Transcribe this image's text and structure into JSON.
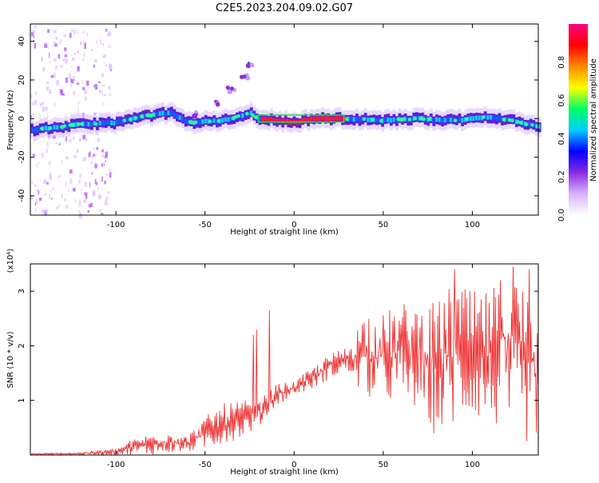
{
  "chart_data": [
    {
      "type": "heatmap",
      "title": "C2E5.2023.204.09.02.G07",
      "xlabel": "Height of straight line (km)",
      "ylabel": "Frequency (Hz)",
      "xlim": [
        -148,
        137
      ],
      "ylim": [
        -50,
        49
      ],
      "x_ticks": [
        -100,
        -50,
        0,
        50,
        100
      ],
      "y_ticks": [
        -40,
        -20,
        0,
        20,
        40
      ],
      "colorbar": {
        "label": "Normalized spectral amplitude",
        "range": [
          0,
          1
        ],
        "ticks": [
          0.0,
          0.2,
          0.4,
          0.6,
          0.8
        ],
        "tick_labels": [
          "0.0",
          "0.2",
          "0.4",
          "0.6",
          "0.8"
        ],
        "colormap": [
          "#ffffff",
          "#d9b3ff",
          "#8a2be2",
          "#0000ff",
          "#00ccff",
          "#00ff66",
          "#ffff00",
          "#ff8800",
          "#ff0000",
          "#ff007f"
        ]
      },
      "main_band": {
        "description_points": [
          {
            "x": -148,
            "freq": -6
          },
          {
            "x": -120,
            "freq": -3
          },
          {
            "x": -100,
            "freq": -2
          },
          {
            "x": -80,
            "freq": 2
          },
          {
            "x": -70,
            "freq": 3
          },
          {
            "x": -60,
            "freq": -2
          },
          {
            "x": -40,
            "freq": -1
          },
          {
            "x": -25,
            "freq": 3
          },
          {
            "x": -20,
            "freq": 0
          },
          {
            "x": 0,
            "freq": -2
          },
          {
            "x": 10,
            "freq": 0
          },
          {
            "x": 30,
            "freq": 0
          },
          {
            "x": 50,
            "freq": -1
          },
          {
            "x": 70,
            "freq": 0
          },
          {
            "x": 90,
            "freq": -1
          },
          {
            "x": 110,
            "freq": 1
          },
          {
            "x": 137,
            "freq": -4
          }
        ],
        "peak_range_x": [
          -20,
          28
        ],
        "peak_freq": 0
      },
      "secondary_trace": [
        {
          "x": -55,
          "freq": 2
        },
        {
          "x": -45,
          "freq": 8
        },
        {
          "x": -35,
          "freq": 15
        },
        {
          "x": -28,
          "freq": 22
        },
        {
          "x": -24,
          "freq": 28
        }
      ]
    },
    {
      "type": "line",
      "xlabel": "Height of straight line (km)",
      "ylabel": "SNR (10 * v/v)",
      "y_multiplier": "(x10⁴)",
      "xlim": [
        -148,
        137
      ],
      "ylim": [
        0,
        3.5
      ],
      "x_ticks": [
        -100,
        -50,
        0,
        50,
        100
      ],
      "y_ticks": [
        1,
        2,
        3
      ],
      "color": "#ee3333",
      "envelope": [
        {
          "x": -148,
          "low": 0.0,
          "high": 0.03
        },
        {
          "x": -120,
          "low": 0.0,
          "high": 0.05
        },
        {
          "x": -100,
          "low": 0.0,
          "high": 0.12
        },
        {
          "x": -90,
          "low": 0.0,
          "high": 0.3
        },
        {
          "x": -80,
          "low": 0.0,
          "high": 0.4
        },
        {
          "x": -70,
          "low": 0.03,
          "high": 0.45
        },
        {
          "x": -60,
          "low": 0.05,
          "high": 0.35
        },
        {
          "x": -50,
          "low": 0.1,
          "high": 0.7
        },
        {
          "x": -40,
          "low": 0.2,
          "high": 0.95
        },
        {
          "x": -30,
          "low": 0.3,
          "high": 1.0
        },
        {
          "x": -20,
          "low": 0.5,
          "high": 1.0
        },
        {
          "x": -10,
          "low": 0.9,
          "high": 1.3
        },
        {
          "x": 0,
          "low": 1.1,
          "high": 1.35
        },
        {
          "x": 10,
          "low": 1.2,
          "high": 1.6
        },
        {
          "x": 20,
          "low": 1.4,
          "high": 1.85
        },
        {
          "x": 30,
          "low": 1.5,
          "high": 2.0
        },
        {
          "x": 40,
          "low": 1.0,
          "high": 2.7
        },
        {
          "x": 50,
          "low": 1.0,
          "high": 2.6
        },
        {
          "x": 60,
          "low": 0.9,
          "high": 2.8
        },
        {
          "x": 70,
          "low": 0.8,
          "high": 2.8
        },
        {
          "x": 80,
          "low": 0.3,
          "high": 2.8
        },
        {
          "x": 90,
          "low": 0.5,
          "high": 3.2
        },
        {
          "x": 100,
          "low": 0.7,
          "high": 3.0
        },
        {
          "x": 110,
          "low": 0.5,
          "high": 3.0
        },
        {
          "x": 120,
          "low": 0.4,
          "high": 3.5
        },
        {
          "x": 130,
          "low": 0.2,
          "high": 3.1
        },
        {
          "x": 137,
          "low": 0.3,
          "high": 2.5
        }
      ],
      "spikes": [
        {
          "x": -23,
          "y": 2.2
        },
        {
          "x": -21,
          "y": 2.3
        },
        {
          "x": -14,
          "y": 2.65
        },
        {
          "x": 90,
          "y": 3.4
        },
        {
          "x": 123,
          "y": 3.45
        },
        {
          "x": 132,
          "y": 3.4
        }
      ]
    }
  ]
}
